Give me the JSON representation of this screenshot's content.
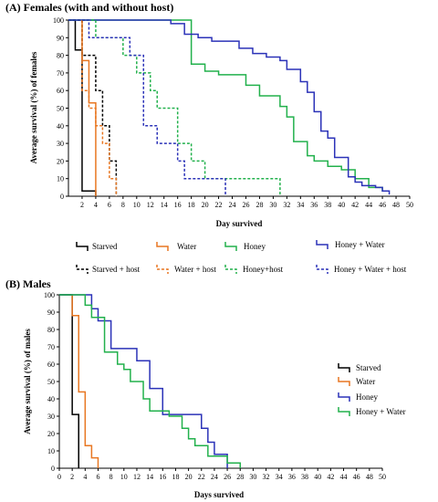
{
  "chart_data": [
    {
      "type": "line",
      "step": true,
      "title": "(A) Females (with and without host)",
      "xlabel": "Day survived",
      "ylabel": "Average survival (%) of females",
      "xlim": [
        0,
        50
      ],
      "ylim": [
        0,
        100
      ],
      "xticks": [
        "2",
        "4",
        "6",
        "8",
        "10",
        "12",
        "14",
        "16",
        "18",
        "20",
        "22",
        "24",
        "26",
        "28",
        "30",
        "32",
        "34",
        "36",
        "38",
        "40",
        "42",
        "44",
        "46",
        "48",
        "50"
      ],
      "yticks": [
        "0",
        "10",
        "20",
        "30",
        "40",
        "50",
        "60",
        "70",
        "80",
        "90",
        "100"
      ],
      "legend_position": "bottom",
      "series": [
        {
          "name": "Starved",
          "color": "#000000",
          "dash": false,
          "points": [
            [
              0,
              100
            ],
            [
              1,
              100
            ],
            [
              1,
              83
            ],
            [
              2,
              83
            ],
            [
              2,
              3
            ],
            [
              4,
              3
            ],
            [
              4,
              0
            ]
          ]
        },
        {
          "name": "Water",
          "color": "#E87722",
          "dash": false,
          "points": [
            [
              2,
              100
            ],
            [
              2,
              77
            ],
            [
              3,
              77
            ],
            [
              3,
              53
            ],
            [
              4,
              53
            ],
            [
              4,
              0
            ]
          ]
        },
        {
          "name": "Honey",
          "color": "#22B14C",
          "dash": false,
          "points": [
            [
              0,
              100
            ],
            [
              18,
              100
            ],
            [
              18,
              75
            ],
            [
              20,
              75
            ],
            [
              20,
              71
            ],
            [
              22,
              71
            ],
            [
              22,
              69
            ],
            [
              26,
              69
            ],
            [
              26,
              63
            ],
            [
              28,
              63
            ],
            [
              28,
              57
            ],
            [
              31,
              57
            ],
            [
              31,
              51
            ],
            [
              32,
              51
            ],
            [
              32,
              45
            ],
            [
              33,
              45
            ],
            [
              33,
              31
            ],
            [
              35,
              31
            ],
            [
              35,
              23
            ],
            [
              36,
              23
            ],
            [
              36,
              20
            ],
            [
              38,
              20
            ],
            [
              38,
              17
            ],
            [
              40,
              17
            ],
            [
              40,
              15
            ],
            [
              42,
              15
            ],
            [
              42,
              10
            ],
            [
              44,
              10
            ],
            [
              44,
              5
            ],
            [
              46,
              5
            ],
            [
              46,
              3
            ],
            [
              47,
              3
            ]
          ]
        },
        {
          "name": "Honey + Water",
          "color": "#2B32B8",
          "dash": false,
          "points": [
            [
              0,
              100
            ],
            [
              15,
              100
            ],
            [
              15,
              98
            ],
            [
              17,
              98
            ],
            [
              17,
              92
            ],
            [
              19,
              92
            ],
            [
              19,
              90
            ],
            [
              21,
              90
            ],
            [
              21,
              88
            ],
            [
              25,
              88
            ],
            [
              25,
              84
            ],
            [
              27,
              84
            ],
            [
              27,
              81
            ],
            [
              29,
              81
            ],
            [
              29,
              79
            ],
            [
              31,
              79
            ],
            [
              31,
              77
            ],
            [
              32,
              77
            ],
            [
              32,
              72
            ],
            [
              34,
              72
            ],
            [
              34,
              65
            ],
            [
              35,
              65
            ],
            [
              35,
              59
            ],
            [
              36,
              59
            ],
            [
              36,
              48
            ],
            [
              37,
              48
            ],
            [
              37,
              37
            ],
            [
              38,
              37
            ],
            [
              38,
              33
            ],
            [
              39,
              33
            ],
            [
              39,
              22
            ],
            [
              41,
              22
            ],
            [
              41,
              11
            ],
            [
              42,
              11
            ],
            [
              42,
              8
            ],
            [
              43,
              8
            ],
            [
              43,
              6
            ],
            [
              45,
              6
            ],
            [
              45,
              5
            ],
            [
              46,
              5
            ],
            [
              46,
              3
            ],
            [
              47,
              3
            ],
            [
              47,
              1
            ]
          ]
        },
        {
          "name": "Starved + host",
          "color": "#000000",
          "dash": true,
          "points": [
            [
              0,
              100
            ],
            [
              2,
              100
            ],
            [
              2,
              80
            ],
            [
              4,
              80
            ],
            [
              4,
              60
            ],
            [
              5,
              60
            ],
            [
              5,
              40
            ],
            [
              6,
              40
            ],
            [
              6,
              20
            ],
            [
              7,
              20
            ],
            [
              7,
              0
            ]
          ]
        },
        {
          "name": "Water + host",
          "color": "#E87722",
          "dash": true,
          "points": [
            [
              2,
              100
            ],
            [
              2,
              60
            ],
            [
              3,
              60
            ],
            [
              3,
              50
            ],
            [
              4,
              50
            ],
            [
              4,
              40
            ],
            [
              5,
              40
            ],
            [
              5,
              30
            ],
            [
              6,
              30
            ],
            [
              6,
              10
            ],
            [
              7,
              10
            ],
            [
              7,
              0
            ]
          ]
        },
        {
          "name": "Honey+host",
          "color": "#22B14C",
          "dash": true,
          "points": [
            [
              0,
              100
            ],
            [
              4,
              100
            ],
            [
              4,
              90
            ],
            [
              8,
              90
            ],
            [
              8,
              80
            ],
            [
              10,
              80
            ],
            [
              10,
              70
            ],
            [
              12,
              70
            ],
            [
              12,
              60
            ],
            [
              13,
              60
            ],
            [
              13,
              50
            ],
            [
              16,
              50
            ],
            [
              16,
              30
            ],
            [
              18,
              30
            ],
            [
              18,
              20
            ],
            [
              20,
              20
            ],
            [
              20,
              10
            ],
            [
              31,
              10
            ],
            [
              31,
              0
            ]
          ]
        },
        {
          "name": "Honey + Water + host",
          "color": "#2B32B8",
          "dash": true,
          "points": [
            [
              0,
              100
            ],
            [
              3,
              100
            ],
            [
              3,
              90
            ],
            [
              9,
              90
            ],
            [
              9,
              80
            ],
            [
              11,
              80
            ],
            [
              11,
              40
            ],
            [
              13,
              40
            ],
            [
              13,
              30
            ],
            [
              16,
              30
            ],
            [
              16,
              20
            ],
            [
              17,
              20
            ],
            [
              17,
              10
            ],
            [
              23,
              10
            ],
            [
              23,
              0
            ]
          ]
        }
      ],
      "legend": [
        "Starved",
        "Water",
        "Honey",
        "Honey + Water",
        "Starved + host",
        "Water + host",
        "Honey+host",
        "Honey + Water + host"
      ]
    },
    {
      "type": "line",
      "step": true,
      "title": "(B) Males",
      "xlabel": "Days survived",
      "ylabel": "Average survival (%) of males",
      "xlim": [
        0,
        50
      ],
      "ylim": [
        0,
        100
      ],
      "xticks": [
        "0",
        "2",
        "4",
        "6",
        "8",
        "10",
        "12",
        "14",
        "16",
        "18",
        "20",
        "22",
        "24",
        "26",
        "28",
        "30",
        "32",
        "34",
        "36",
        "38",
        "40",
        "42",
        "44",
        "46",
        "48",
        "50"
      ],
      "yticks": [
        "0",
        "10",
        "20",
        "30",
        "40",
        "50",
        "60",
        "70",
        "80",
        "90",
        "100"
      ],
      "legend_position": "right",
      "series": [
        {
          "name": "Starved",
          "color": "#000000",
          "dash": false,
          "points": [
            [
              0,
              100
            ],
            [
              2,
              100
            ],
            [
              2,
              31
            ],
            [
              3,
              31
            ],
            [
              3,
              0
            ]
          ]
        },
        {
          "name": "Water",
          "color": "#E87722",
          "dash": false,
          "points": [
            [
              2,
              100
            ],
            [
              2,
              88
            ],
            [
              3,
              88
            ],
            [
              3,
              44
            ],
            [
              4,
              44
            ],
            [
              4,
              13
            ],
            [
              5,
              13
            ],
            [
              5,
              6
            ],
            [
              6,
              6
            ],
            [
              6,
              0
            ]
          ]
        },
        {
          "name": "Honey",
          "color": "#2B32B8",
          "dash": false,
          "points": [
            [
              0,
              100
            ],
            [
              5,
              100
            ],
            [
              5,
              92
            ],
            [
              6,
              92
            ],
            [
              6,
              85
            ],
            [
              8,
              85
            ],
            [
              8,
              69
            ],
            [
              12,
              69
            ],
            [
              12,
              62
            ],
            [
              14,
              62
            ],
            [
              14,
              46
            ],
            [
              16,
              46
            ],
            [
              16,
              31
            ],
            [
              22,
              31
            ],
            [
              22,
              23
            ],
            [
              23,
              23
            ],
            [
              23,
              15
            ],
            [
              24,
              15
            ],
            [
              24,
              8
            ],
            [
              26,
              8
            ],
            [
              26,
              0
            ]
          ]
        },
        {
          "name": "Honey + Water",
          "color": "#22B14C",
          "dash": false,
          "points": [
            [
              0,
              100
            ],
            [
              4,
              100
            ],
            [
              4,
              94
            ],
            [
              5,
              94
            ],
            [
              5,
              87
            ],
            [
              7,
              87
            ],
            [
              7,
              67
            ],
            [
              9,
              67
            ],
            [
              9,
              60
            ],
            [
              10,
              60
            ],
            [
              10,
              57
            ],
            [
              11,
              57
            ],
            [
              11,
              50
            ],
            [
              13,
              50
            ],
            [
              13,
              40
            ],
            [
              14,
              40
            ],
            [
              14,
              33
            ],
            [
              17,
              33
            ],
            [
              17,
              30
            ],
            [
              19,
              30
            ],
            [
              19,
              23
            ],
            [
              20,
              23
            ],
            [
              20,
              17
            ],
            [
              21,
              17
            ],
            [
              21,
              13
            ],
            [
              23,
              13
            ],
            [
              23,
              7
            ],
            [
              26,
              7
            ],
            [
              26,
              3
            ],
            [
              28,
              3
            ],
            [
              28,
              0
            ]
          ]
        }
      ],
      "legend": [
        "Starved",
        "Water",
        "Honey",
        "Honey + Water"
      ]
    }
  ]
}
